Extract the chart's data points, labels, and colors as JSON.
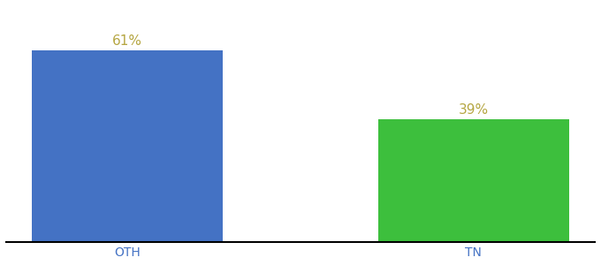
{
  "categories": [
    "OTH",
    "TN"
  ],
  "values": [
    61,
    39
  ],
  "bar_colors": [
    "#4472c4",
    "#3dbf3d"
  ],
  "label_color": "#b5a642",
  "label_texts": [
    "61%",
    "39%"
  ],
  "label_fontsize": 11,
  "tick_fontsize": 10,
  "tick_color": "#4472c4",
  "background_color": "#ffffff",
  "ylim": [
    0,
    75
  ],
  "bar_width": 0.55,
  "figsize": [
    6.8,
    3.0
  ],
  "dpi": 100,
  "xlim": [
    -0.35,
    1.35
  ]
}
